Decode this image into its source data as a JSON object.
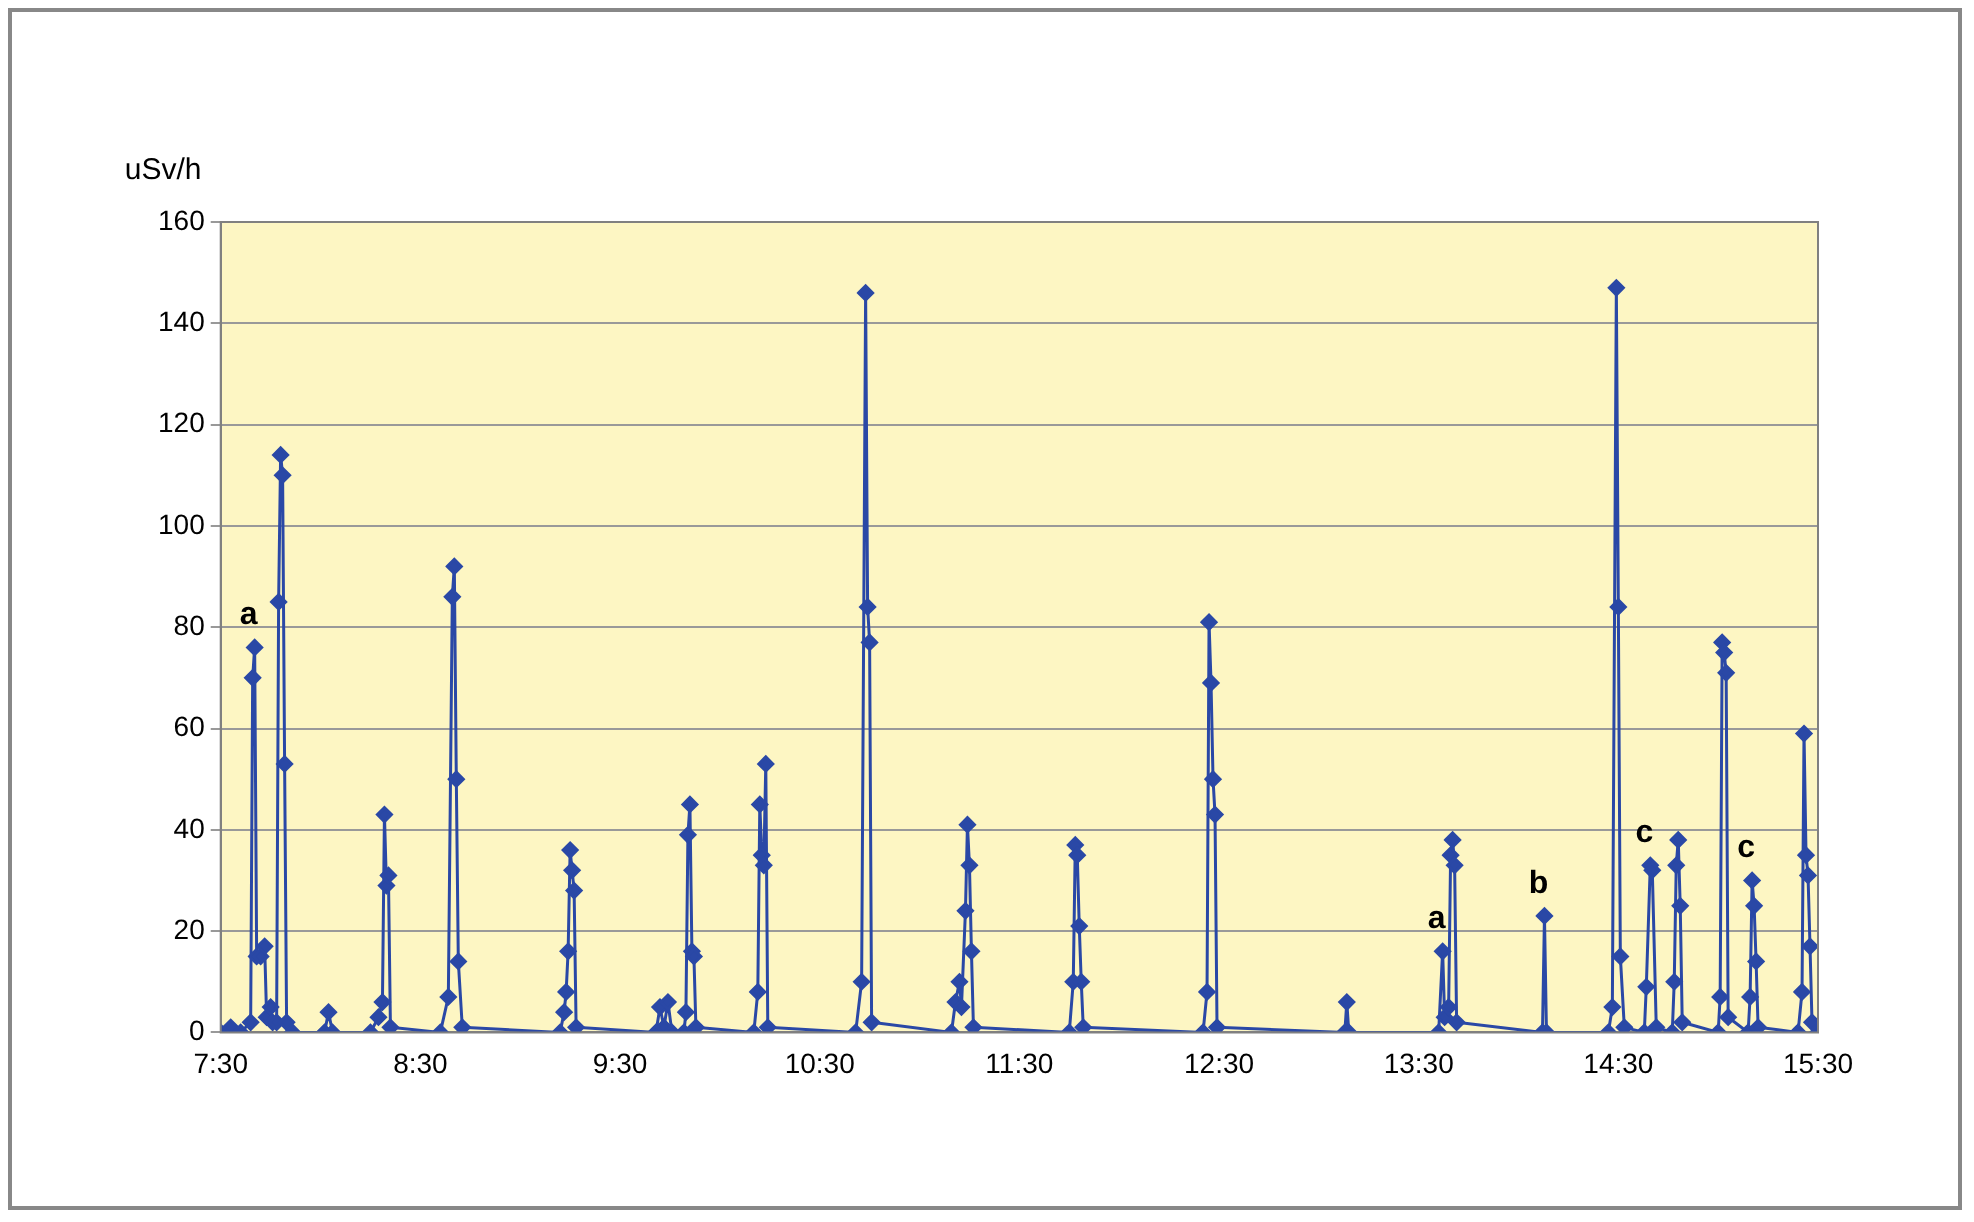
{
  "chart_data": {
    "type": "line",
    "ylabel": "uSv/h",
    "color": "#2a48a6",
    "marker": "diamond",
    "grid": "y",
    "legend": false,
    "x": [
      7.5,
      7.55,
      7.6,
      7.65,
      7.66,
      7.67,
      7.68,
      7.7,
      7.72,
      7.73,
      7.75,
      7.76,
      7.78,
      7.79,
      7.8,
      7.81,
      7.82,
      7.83,
      7.86,
      8.02,
      8.04,
      8.06,
      8.25,
      8.29,
      8.31,
      8.32,
      8.33,
      8.34,
      8.35,
      8.6,
      8.64,
      8.66,
      8.67,
      8.68,
      8.69,
      8.71,
      9.2,
      9.22,
      9.23,
      9.24,
      9.25,
      9.26,
      9.27,
      9.28,
      9.68,
      9.7,
      9.72,
      9.74,
      9.76,
      9.82,
      9.83,
      9.84,
      9.85,
      9.86,
      9.87,
      9.88,
      10.17,
      10.19,
      10.2,
      10.21,
      10.22,
      10.23,
      10.24,
      10.68,
      10.71,
      10.73,
      10.74,
      10.75,
      10.76,
      11.16,
      11.18,
      11.2,
      11.21,
      11.23,
      11.24,
      11.25,
      11.26,
      11.27,
      11.75,
      11.77,
      11.78,
      11.79,
      11.8,
      11.81,
      11.82,
      12.42,
      12.44,
      12.45,
      12.46,
      12.47,
      12.48,
      12.49,
      13.13,
      13.14,
      13.15,
      13.6,
      13.62,
      13.63,
      13.65,
      13.66,
      13.67,
      13.68,
      13.69,
      14.12,
      14.13,
      14.14,
      14.45,
      14.47,
      14.49,
      14.5,
      14.51,
      14.53,
      14.63,
      14.64,
      14.66,
      14.67,
      14.69,
      14.77,
      14.78,
      14.79,
      14.8,
      14.81,
      14.82,
      15.0,
      15.01,
      15.02,
      15.03,
      15.04,
      15.05,
      15.15,
      15.16,
      15.17,
      15.18,
      15.19,
      15.2,
      15.4,
      15.42,
      15.43,
      15.44,
      15.45,
      15.46,
      15.47,
      15.5
    ],
    "values": [
      0,
      1,
      0,
      2,
      70,
      76,
      15,
      15,
      17,
      3,
      5,
      2,
      2,
      85,
      114,
      110,
      53,
      2,
      0,
      0,
      4,
      0,
      0,
      3,
      6,
      43,
      29,
      31,
      1,
      0,
      7,
      86,
      92,
      50,
      14,
      1,
      0,
      4,
      8,
      16,
      36,
      32,
      28,
      1,
      0,
      5,
      1,
      6,
      0,
      0,
      4,
      39,
      45,
      16,
      15,
      1,
      0,
      8,
      45,
      35,
      33,
      53,
      1,
      0,
      10,
      146,
      84,
      77,
      2,
      0,
      6,
      10,
      5,
      24,
      41,
      33,
      16,
      1,
      0,
      10,
      37,
      35,
      21,
      10,
      1,
      0,
      8,
      81,
      69,
      50,
      43,
      1,
      0,
      6,
      0,
      0,
      16,
      3,
      5,
      35,
      38,
      33,
      2,
      0,
      23,
      0,
      0,
      5,
      147,
      84,
      15,
      1,
      0,
      9,
      33,
      32,
      1,
      0,
      10,
      33,
      38,
      25,
      2,
      0,
      7,
      77,
      75,
      71,
      3,
      0,
      7,
      30,
      25,
      14,
      1,
      0,
      8,
      59,
      35,
      31,
      17,
      2,
      0
    ],
    "xlim": [
      7.5,
      15.5
    ],
    "xticks": [
      {
        "value": 7.5,
        "label": "7:30"
      },
      {
        "value": 8.5,
        "label": "8:30"
      },
      {
        "value": 9.5,
        "label": "9:30"
      },
      {
        "value": 10.5,
        "label": "10:30"
      },
      {
        "value": 11.5,
        "label": "11:30"
      },
      {
        "value": 12.5,
        "label": "12:30"
      },
      {
        "value": 13.5,
        "label": "13:30"
      },
      {
        "value": 14.5,
        "label": "14:30"
      },
      {
        "value": 15.5,
        "label": "15:30"
      }
    ],
    "ylim": [
      0,
      160
    ],
    "yticks": [
      0,
      20,
      40,
      60,
      80,
      100,
      120,
      140,
      160
    ],
    "annotations": [
      {
        "text": "a",
        "x": 7.67,
        "y": 76
      },
      {
        "text": "a",
        "x": 13.62,
        "y": 16
      },
      {
        "text": "b",
        "x": 14.13,
        "y": 23
      },
      {
        "text": "c",
        "x": 14.66,
        "y": 33
      },
      {
        "text": "c",
        "x": 15.17,
        "y": 30
      }
    ]
  }
}
